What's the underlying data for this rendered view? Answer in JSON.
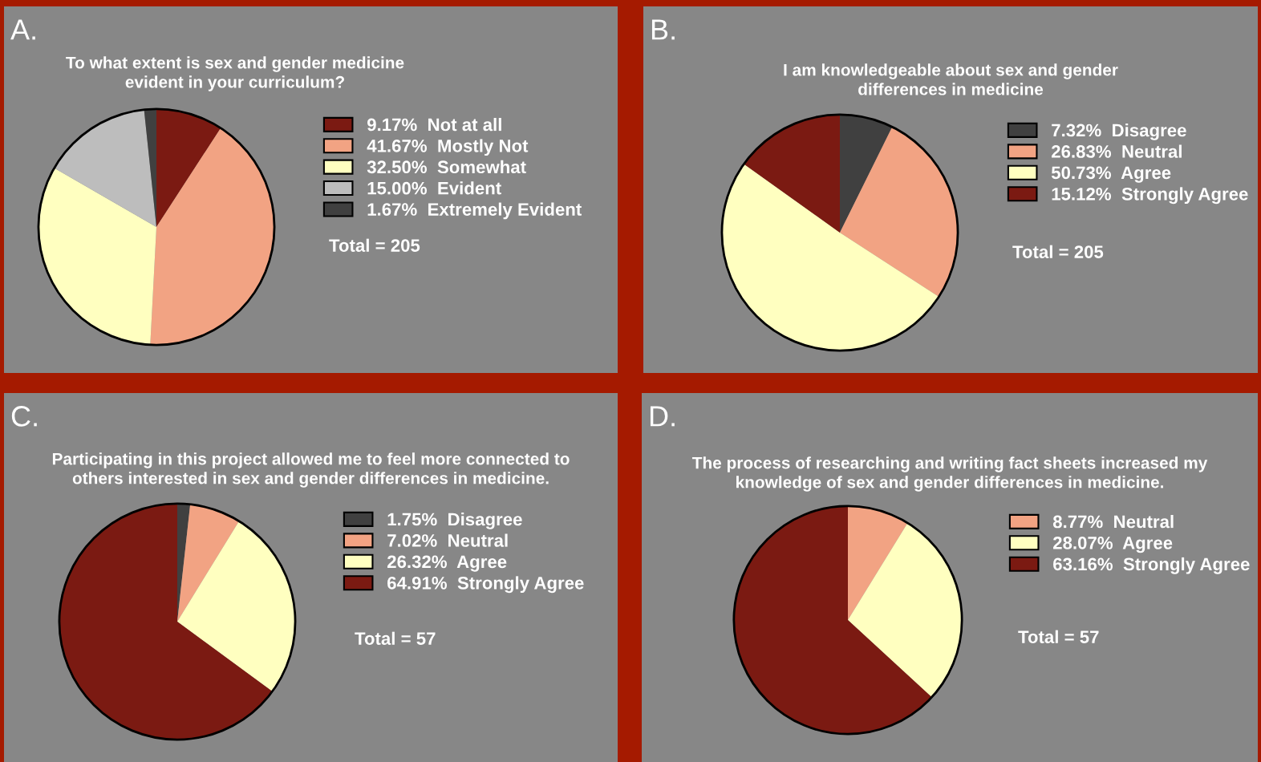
{
  "chart_data": [
    {
      "type": "pie",
      "title": "To what extent is sex and gender medicine\nevident in your curriculum?",
      "categories": [
        "Not at all",
        "Mostly Not",
        "Somewhat",
        "Evident",
        "Extremely Evident"
      ],
      "values": [
        9.17,
        41.67,
        32.5,
        15.0,
        1.67
      ],
      "value_labels": [
        "9.17%",
        "41.67%",
        "32.50%",
        "15.00%",
        "1.67%"
      ],
      "colors": [
        "#7b1a12",
        "#f2a383",
        "#ffffc0",
        "#bdbdbd",
        "#404040"
      ],
      "legend": "right",
      "annotations": [
        "A.",
        "Total = 205"
      ]
    },
    {
      "type": "pie",
      "title": "I am knowledgeable about sex and gender\ndifferences in medicine",
      "categories": [
        "Disagree",
        "Neutral",
        "Agree",
        "Strongly Agree"
      ],
      "values": [
        7.32,
        26.83,
        50.73,
        15.12
      ],
      "value_labels": [
        "7.32%",
        "26.83%",
        "50.73%",
        "15.12%"
      ],
      "colors": [
        "#404040",
        "#f2a383",
        "#ffffc0",
        "#7b1a12"
      ],
      "legend": "right",
      "annotations": [
        "B.",
        "Total = 205"
      ]
    },
    {
      "type": "pie",
      "title": "Participating in this project allowed me to feel more connected to\nothers interested in sex and gender differences in medicine.",
      "categories": [
        "Disagree",
        "Neutral",
        "Agree",
        "Strongly Agree"
      ],
      "values": [
        1.75,
        7.02,
        26.32,
        64.91
      ],
      "value_labels": [
        "1.75%",
        "7.02%",
        "26.32%",
        "64.91%"
      ],
      "colors": [
        "#404040",
        "#f2a383",
        "#ffffc0",
        "#7b1a12"
      ],
      "legend": "right",
      "annotations": [
        "C.",
        "Total = 57"
      ]
    },
    {
      "type": "pie",
      "title": "The process of researching and writing fact sheets increased my\nknowledge of sex and gender differences in medicine.",
      "categories": [
        "Neutral",
        "Agree",
        "Strongly Agree"
      ],
      "values": [
        8.77,
        28.07,
        63.16
      ],
      "value_labels": [
        "8.77%",
        "28.07%",
        "63.16%"
      ],
      "colors": [
        "#f2a383",
        "#ffffc0",
        "#7b1a12"
      ],
      "legend": "right",
      "annotations": [
        "D.",
        "Total = 57"
      ]
    }
  ]
}
